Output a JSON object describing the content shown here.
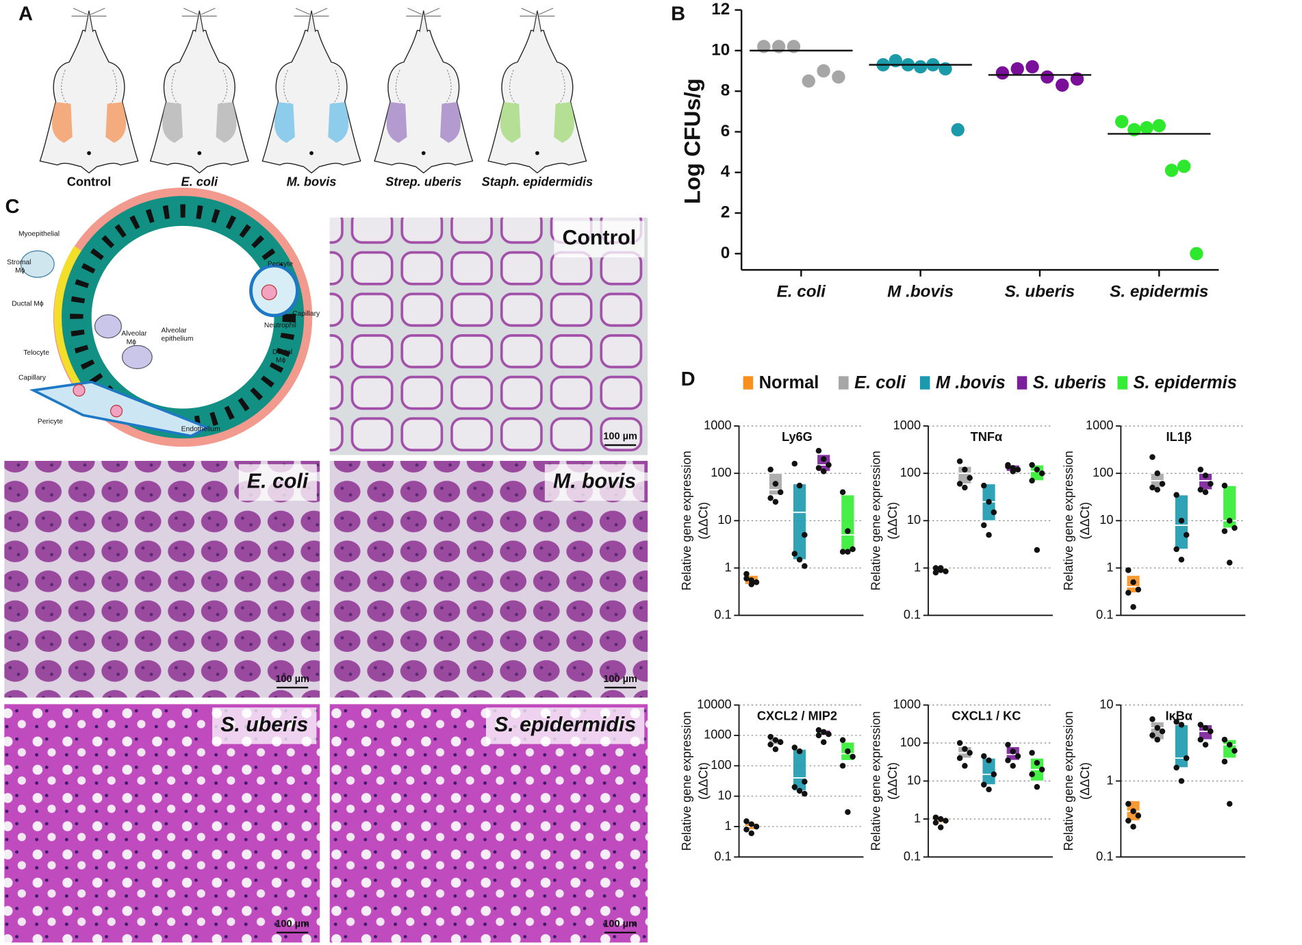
{
  "panels": {
    "A": {
      "letter": "A",
      "labels": [
        "Control",
        "E. coli",
        "M. bovis",
        "Strep. uberis",
        "Staph. epidermidis"
      ]
    },
    "B": {
      "letter": "B"
    },
    "C": {
      "letter": "C",
      "diagram_labels": [
        "Myoepithelial",
        "Stromal",
        "Mϕ",
        "Ductal Mϕ",
        "Alveolar",
        "epithelium",
        "Alveolar",
        "Mϕ",
        "Telocyte",
        "Capillary",
        "Pericyte",
        "Endothelium",
        "Pericyte",
        "Neutrophil",
        "Capillary",
        "Ductal",
        "Mϕ"
      ],
      "images": [
        {
          "label": "Control",
          "scale": "100 µm"
        },
        {
          "label": "E. coli",
          "scale": "100 µm"
        },
        {
          "label": "M. bovis",
          "scale": "100 µm"
        },
        {
          "label": "S. uberis",
          "scale": "100 µm"
        },
        {
          "label": "S. epidermidis",
          "scale": "100 µm"
        }
      ]
    },
    "D": {
      "letter": "D",
      "legend": [
        {
          "name": "Normal",
          "color": "#f7901e"
        },
        {
          "name": "E. coli",
          "color": "#a6a6a6"
        },
        {
          "name": "M .bovis",
          "color": "#1b9aaf"
        },
        {
          "name": "S. uberis",
          "color": "#7b1f9a"
        },
        {
          "name": "S. epidermis",
          "color": "#33ee33"
        }
      ]
    }
  },
  "chart_data": [
    {
      "type": "dot",
      "ylabel": "Log CFUs/g",
      "categories": [
        "E. coli",
        "M .bovis",
        "S. uberis",
        "S. epidermis"
      ],
      "colors": [
        "#a6a6a6",
        "#1b9aaa",
        "#7a0f9a",
        "#2ee82e"
      ],
      "points": [
        [
          10.2,
          10.2,
          10.2,
          8.5,
          9.0,
          8.7
        ],
        [
          9.3,
          9.5,
          9.3,
          9.2,
          9.3,
          9.1,
          6.1
        ],
        [
          8.9,
          9.1,
          9.2,
          8.7,
          8.3,
          8.6
        ],
        [
          6.5,
          6.1,
          6.2,
          6.3,
          4.1,
          4.3,
          0
        ]
      ],
      "medians": [
        10.0,
        9.3,
        8.8,
        5.9
      ],
      "ylim": [
        -0.8,
        12
      ],
      "yticks": [
        0,
        2,
        4,
        6,
        8,
        10,
        12
      ]
    },
    {
      "type": "floating-box",
      "title": "Ly6G",
      "ylabel": [
        "Relative gene expression",
        "(ΔΔCt)"
      ],
      "log_scale": true,
      "grid": true,
      "ylim": [
        0.1,
        1000
      ],
      "yticks": [
        0.1,
        1,
        10,
        100,
        1000
      ],
      "groups": [
        {
          "points": [
            0.75,
            0.55,
            0.5,
            0.6,
            0.45
          ],
          "box": [
            0.45,
            0.7
          ],
          "median": 0.55
        },
        {
          "points": [
            120,
            60,
            40,
            30,
            25
          ],
          "box": [
            35,
            100
          ],
          "median": 45
        },
        {
          "points": [
            160,
            55,
            5,
            2,
            1.5,
            1.1
          ],
          "box": [
            1.5,
            60
          ],
          "median": 15
        },
        {
          "points": [
            300,
            200,
            150,
            130,
            110
          ],
          "box": [
            110,
            250
          ],
          "median": 150
        },
        {
          "points": [
            40,
            6,
            2.5,
            2.2,
            2.2
          ],
          "box": [
            2.2,
            35
          ],
          "median": 5
        }
      ]
    },
    {
      "type": "floating-box",
      "title": "TNFα",
      "ylabel": [
        "Relative gene expression",
        "(ΔΔCt)"
      ],
      "log_scale": true,
      "grid": true,
      "ylim": [
        0.1,
        1000
      ],
      "yticks": [
        0.1,
        1,
        10,
        100,
        1000
      ],
      "groups": [
        {
          "points": [
            1.0,
            0.9,
            0.85,
            0.8,
            1.0
          ],
          "box": [
            0.8,
            1.0
          ],
          "median": 0.9
        },
        {
          "points": [
            180,
            120,
            80,
            60,
            50
          ],
          "box": [
            60,
            140
          ],
          "median": 100
        },
        {
          "points": [
            55,
            25,
            15,
            8,
            5
          ],
          "box": [
            10,
            60
          ],
          "median": 25
        },
        {
          "points": [
            140,
            130,
            120,
            150,
            110
          ],
          "box": [
            110,
            150
          ],
          "median": 130
        },
        {
          "points": [
            150,
            120,
            100,
            70,
            2.4
          ],
          "box": [
            70,
            150
          ],
          "median": 110
        }
      ]
    },
    {
      "type": "floating-box",
      "title": "IL1β",
      "ylabel": [
        "Relative gene expression",
        "(ΔΔCt)"
      ],
      "log_scale": true,
      "grid": true,
      "ylim": [
        0.1,
        1000
      ],
      "yticks": [
        0.1,
        1,
        10,
        100,
        1000
      ],
      "groups": [
        {
          "points": [
            0.9,
            0.5,
            0.35,
            0.3,
            0.15
          ],
          "box": [
            0.3,
            0.7
          ],
          "median": 0.4
        },
        {
          "points": [
            220,
            100,
            60,
            50,
            45
          ],
          "box": [
            50,
            100
          ],
          "median": 70
        },
        {
          "points": [
            35,
            10,
            5,
            2.5,
            1.5
          ],
          "box": [
            2.5,
            35
          ],
          "median": 8
        },
        {
          "points": [
            120,
            90,
            60,
            45,
            40
          ],
          "box": [
            45,
            100
          ],
          "median": 70
        },
        {
          "points": [
            55,
            10,
            7,
            6,
            1.3
          ],
          "box": [
            7,
            55
          ],
          "median": 10
        }
      ]
    },
    {
      "type": "floating-box",
      "title": "CXCL2 / MIP2",
      "ylabel": [
        "Relative gene expression",
        "(ΔΔCt)"
      ],
      "log_scale": true,
      "grid": true,
      "ylim": [
        0.1,
        10000
      ],
      "yticks": [
        0.1,
        1,
        10,
        100,
        1000,
        10000
      ],
      "groups": [
        {
          "points": [
            1.5,
            1.2,
            1.0,
            0.8,
            0.6
          ],
          "box": [
            0.8,
            1.3
          ],
          "median": 1.0
        },
        {
          "points": [
            900,
            700,
            600,
            500,
            350
          ],
          "box": [
            500,
            800
          ],
          "median": 600
        },
        {
          "points": [
            400,
            300,
            30,
            20,
            15,
            12
          ],
          "box": [
            15,
            350
          ],
          "median": 40
        },
        {
          "points": [
            1500,
            1300,
            1100,
            1000,
            600
          ],
          "box": [
            1000,
            1500
          ],
          "median": 1200
        },
        {
          "points": [
            700,
            300,
            200,
            100,
            3
          ],
          "box": [
            150,
            600
          ],
          "median": 250
        }
      ]
    },
    {
      "type": "floating-box",
      "title": "CXCL1 / KC",
      "ylabel": [
        "Relative gene expression",
        "(ΔΔCt)"
      ],
      "log_scale": true,
      "grid": true,
      "ylim": [
        0.1,
        1000
      ],
      "yticks": [
        0.1,
        1,
        10,
        100,
        1000
      ],
      "groups": [
        {
          "points": [
            1.1,
            1.0,
            0.9,
            0.8,
            0.6
          ],
          "box": [
            0.8,
            1.0
          ],
          "median": 0.9
        },
        {
          "points": [
            100,
            70,
            55,
            40,
            25
          ],
          "box": [
            40,
            80
          ],
          "median": 55
        },
        {
          "points": [
            45,
            35,
            15,
            8,
            6
          ],
          "box": [
            8,
            40
          ],
          "median": 15
        },
        {
          "points": [
            90,
            60,
            45,
            35,
            25
          ],
          "box": [
            35,
            80
          ],
          "median": 50
        },
        {
          "points": [
            55,
            30,
            20,
            15,
            7
          ],
          "box": [
            10,
            40
          ],
          "median": 20
        }
      ]
    },
    {
      "type": "floating-box",
      "title": "IκBα",
      "ylabel": [
        "Relative gene expression",
        "(ΔΔCt)"
      ],
      "log_scale": true,
      "grid": true,
      "ylim": [
        0.1,
        10
      ],
      "yticks": [
        0.1,
        1,
        10
      ],
      "groups": [
        {
          "points": [
            0.5,
            0.4,
            0.35,
            0.3,
            0.25
          ],
          "box": [
            0.3,
            0.55
          ],
          "median": 0.4
        },
        {
          "points": [
            6.5,
            5,
            4.5,
            4,
            3.5
          ],
          "box": [
            3.5,
            6
          ],
          "median": 5
        },
        {
          "points": [
            6,
            5.5,
            2,
            1.5,
            1.0
          ],
          "box": [
            1.5,
            5.5
          ],
          "median": 2
        },
        {
          "points": [
            5.5,
            5,
            4.5,
            3.5,
            3
          ],
          "box": [
            3.5,
            5.5
          ],
          "median": 4.5
        },
        {
          "points": [
            3.5,
            3,
            2.5,
            1.8,
            0.5
          ],
          "box": [
            2,
            3.5
          ],
          "median": 3
        }
      ]
    }
  ]
}
